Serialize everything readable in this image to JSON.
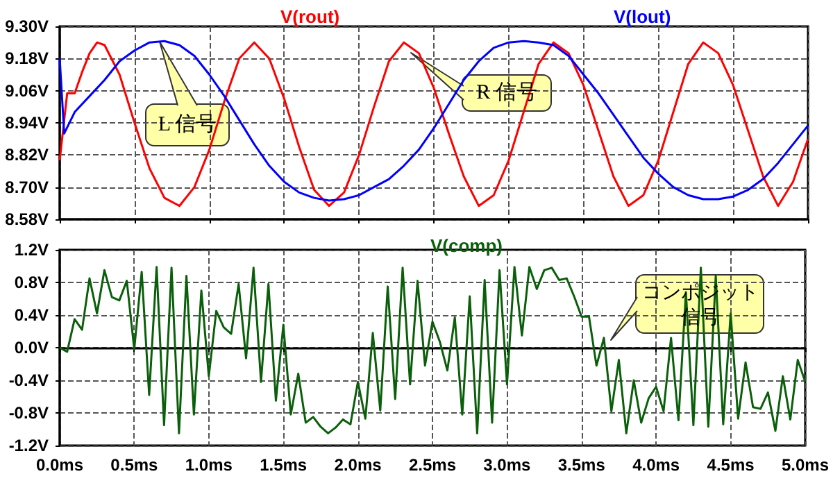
{
  "chart_data": [
    {
      "type": "line",
      "grid": true,
      "legend": "top",
      "tick_labels": "y",
      "xlim": [
        0,
        5
      ],
      "xticks": [
        0,
        0.5,
        1,
        1.5,
        2,
        2.5,
        3,
        3.5,
        4,
        4.5,
        5
      ],
      "ylim": [
        8.58,
        9.3
      ],
      "yticks": [
        {
          "value": 8.58,
          "label": "8.58V"
        },
        {
          "value": 8.7,
          "label": "8.70V"
        },
        {
          "value": 8.82,
          "label": "8.82V"
        },
        {
          "value": 8.94,
          "label": "8.94V"
        },
        {
          "value": 9.06,
          "label": "9.06V"
        },
        {
          "value": 9.18,
          "label": "9.18V"
        },
        {
          "value": 9.3,
          "label": "9.30V"
        }
      ],
      "annotations": [
        "L 信号",
        "R 信号"
      ],
      "series": [
        {
          "name": "V(rout)",
          "color": "#ff0000",
          "x": [
            0,
            0.05,
            0.1,
            0.15,
            0.2,
            0.25,
            0.3,
            0.4,
            0.5,
            0.6,
            0.7,
            0.8,
            0.9,
            1.0,
            1.1,
            1.2,
            1.3,
            1.4,
            1.5,
            1.6,
            1.7,
            1.8,
            1.9,
            2.0,
            2.1,
            2.2,
            2.3,
            2.4,
            2.5,
            2.6,
            2.7,
            2.8,
            2.9,
            3.0,
            3.1,
            3.2,
            3.3,
            3.4,
            3.5,
            3.6,
            3.7,
            3.8,
            3.9,
            4.0,
            4.1,
            4.2,
            4.3,
            4.4,
            4.5,
            4.6,
            4.7,
            4.8,
            4.9,
            5.0
          ],
          "values": [
            8.8,
            9.05,
            9.05,
            9.13,
            9.2,
            9.24,
            9.23,
            9.12,
            8.94,
            8.77,
            8.66,
            8.63,
            8.7,
            8.84,
            9.02,
            9.18,
            9.24,
            9.18,
            9.03,
            8.85,
            8.69,
            8.63,
            8.68,
            8.82,
            9.0,
            9.17,
            9.24,
            9.2,
            9.07,
            8.9,
            8.74,
            8.63,
            8.67,
            8.8,
            8.98,
            9.16,
            9.24,
            9.2,
            9.08,
            8.91,
            8.74,
            8.63,
            8.67,
            8.8,
            8.98,
            9.16,
            9.24,
            9.2,
            9.08,
            8.91,
            8.74,
            8.63,
            8.72,
            8.88
          ]
        },
        {
          "name": "V(lout)",
          "color": "#0000ff",
          "x": [
            0,
            0.03,
            0.1,
            0.2,
            0.3,
            0.4,
            0.5,
            0.6,
            0.7,
            0.8,
            0.9,
            1.0,
            1.1,
            1.2,
            1.3,
            1.4,
            1.5,
            1.6,
            1.7,
            1.8,
            1.9,
            2.0,
            2.1,
            2.2,
            2.3,
            2.4,
            2.5,
            2.6,
            2.7,
            2.8,
            2.9,
            3.0,
            3.1,
            3.2,
            3.3,
            3.4,
            3.5,
            3.6,
            3.7,
            3.8,
            3.9,
            4.0,
            4.1,
            4.2,
            4.3,
            4.4,
            4.5,
            4.6,
            4.7,
            4.8,
            4.9,
            5.0
          ],
          "values": [
            9.18,
            8.9,
            8.98,
            9.04,
            9.1,
            9.17,
            9.21,
            9.24,
            9.245,
            9.23,
            9.19,
            9.12,
            9.04,
            8.95,
            8.86,
            8.78,
            8.72,
            8.68,
            8.66,
            8.65,
            8.655,
            8.67,
            8.7,
            8.73,
            8.78,
            8.84,
            8.92,
            9.01,
            9.1,
            9.17,
            9.22,
            9.24,
            9.245,
            9.24,
            9.23,
            9.19,
            9.12,
            9.05,
            8.97,
            8.89,
            8.81,
            8.75,
            8.7,
            8.67,
            8.655,
            8.655,
            8.665,
            8.69,
            8.73,
            8.79,
            8.86,
            8.93
          ]
        }
      ]
    },
    {
      "type": "line",
      "grid": true,
      "legend": "top",
      "xlim": [
        0,
        5
      ],
      "xticks": [
        {
          "value": 0,
          "label": "0.0ms"
        },
        {
          "value": 0.5,
          "label": "0.5ms"
        },
        {
          "value": 1,
          "label": "1.0ms"
        },
        {
          "value": 1.5,
          "label": "1.5ms"
        },
        {
          "value": 2,
          "label": "2.0ms"
        },
        {
          "value": 2.5,
          "label": "2.5ms"
        },
        {
          "value": 3,
          "label": "3.0ms"
        },
        {
          "value": 3.5,
          "label": "3.5ms"
        },
        {
          "value": 4,
          "label": "4.0ms"
        },
        {
          "value": 4.5,
          "label": "4.5ms"
        },
        {
          "value": 5,
          "label": "5.0ms"
        }
      ],
      "ylim": [
        -1.2,
        1.2
      ],
      "yticks": [
        {
          "value": -1.2,
          "label": "-1.2V"
        },
        {
          "value": -0.8,
          "label": "-0.8V"
        },
        {
          "value": -0.4,
          "label": "-0.4V"
        },
        {
          "value": 0,
          "label": "0.0V"
        },
        {
          "value": 0.4,
          "label": "0.4V"
        },
        {
          "value": 0.8,
          "label": "0.8V"
        },
        {
          "value": 1.2,
          "label": "1.2V"
        }
      ],
      "annotations": [
        {
          "text": "コンポジット信号",
          "x": 3.7,
          "y": 0.1
        }
      ],
      "series": [
        {
          "name": "V(comp)",
          "color": "#0a5f0a",
          "x": [
            0,
            0.05,
            0.1,
            0.15,
            0.2,
            0.25,
            0.3,
            0.35,
            0.4,
            0.45,
            0.5,
            0.55,
            0.6,
            0.65,
            0.7,
            0.75,
            0.8,
            0.85,
            0.9,
            0.95,
            1.0,
            1.05,
            1.1,
            1.15,
            1.2,
            1.25,
            1.3,
            1.35,
            1.4,
            1.45,
            1.5,
            1.55,
            1.6,
            1.65,
            1.7,
            1.75,
            1.8,
            1.85,
            1.9,
            1.95,
            2.0,
            2.05,
            2.1,
            2.15,
            2.2,
            2.25,
            2.3,
            2.35,
            2.4,
            2.45,
            2.5,
            2.55,
            2.6,
            2.65,
            2.7,
            2.75,
            2.8,
            2.85,
            2.9,
            2.95,
            3.0,
            3.05,
            3.1,
            3.15,
            3.2,
            3.25,
            3.3,
            3.35,
            3.4,
            3.45,
            3.5,
            3.55,
            3.6,
            3.65,
            3.7,
            3.75,
            3.8,
            3.85,
            3.9,
            3.95,
            4.0,
            4.05,
            4.1,
            4.15,
            4.2,
            4.25,
            4.3,
            4.35,
            4.4,
            4.45,
            4.5,
            4.55,
            4.6,
            4.65,
            4.7,
            4.75,
            4.8,
            4.85,
            4.9,
            4.95,
            5.0
          ],
          "values": [
            0.0,
            -0.05,
            0.35,
            0.22,
            0.85,
            0.42,
            0.95,
            0.62,
            0.58,
            0.82,
            -0.02,
            0.93,
            -0.58,
            0.99,
            -0.95,
            0.98,
            -1.05,
            0.88,
            -0.82,
            0.7,
            -0.35,
            0.45,
            0.25,
            0.17,
            0.78,
            -0.13,
            0.98,
            -0.42,
            0.78,
            -0.65,
            0.28,
            -0.82,
            -0.32,
            -0.92,
            -0.85,
            -0.97,
            -1.05,
            -0.98,
            -0.88,
            -0.94,
            -0.42,
            -0.87,
            0.18,
            -0.77,
            0.75,
            -0.63,
            0.98,
            -0.45,
            0.82,
            -0.22,
            0.32,
            0.07,
            -0.28,
            0.37,
            -0.82,
            0.63,
            -1.05,
            0.83,
            -0.92,
            0.95,
            -0.45,
            0.99,
            0.15,
            0.99,
            0.72,
            0.95,
            0.98,
            0.83,
            0.85,
            0.63,
            0.38,
            0.38,
            -0.22,
            0.12,
            -0.78,
            -0.15,
            -1.05,
            -0.4,
            -0.92,
            -0.62,
            -0.48,
            -0.78,
            0.12,
            -0.89,
            0.68,
            -0.95,
            0.98,
            -0.97,
            0.88,
            -0.94,
            0.42,
            -0.87,
            -0.18,
            -0.73,
            -0.75,
            -0.55,
            -1.02,
            -0.35,
            -0.88,
            -0.15,
            -0.42
          ]
        }
      ]
    }
  ]
}
